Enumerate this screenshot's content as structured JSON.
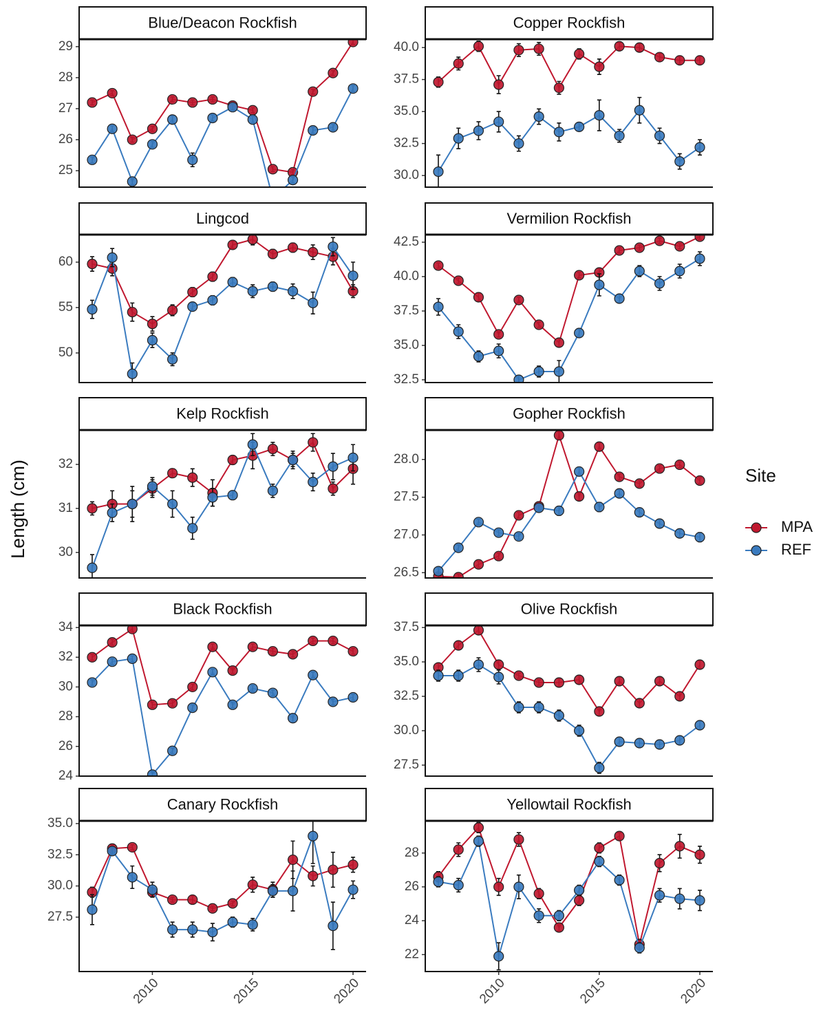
{
  "y_label": "Length (cm)",
  "legend_title": "Site",
  "chart_data": [
    {
      "type": "line",
      "title": "Blue/Deacon Rockfish",
      "x": [
        2007,
        2008,
        2009,
        2010,
        2011,
        2012,
        2013,
        2014,
        2015,
        2016,
        2017,
        2018,
        2019,
        2020
      ],
      "xlim": [
        2006.35,
        2020.65
      ],
      "ylim": [
        24.47,
        29.24
      ],
      "yticks": [
        25,
        26,
        27,
        28,
        29
      ],
      "series": [
        {
          "name": "MPA",
          "color": "#c0182f",
          "values": [
            27.2,
            27.5,
            26.0,
            26.35,
            27.3,
            27.2,
            27.3,
            27.1,
            26.95,
            25.05,
            24.95,
            27.55,
            28.15,
            29.15
          ],
          "errors": [
            0.08,
            0.08,
            0.08,
            0.08,
            0.08,
            0.08,
            0.08,
            0.08,
            0.08,
            0.08,
            0.08,
            0.08,
            0.08,
            0.08
          ]
        },
        {
          "name": "REF",
          "color": "#3a7bbf",
          "values": [
            25.35,
            26.35,
            24.65,
            25.85,
            26.65,
            25.35,
            26.7,
            27.05,
            26.65,
            24.1,
            24.7,
            26.3,
            26.4,
            27.65
          ],
          "errors": [
            0.1,
            0.1,
            0.1,
            0.1,
            0.12,
            0.22,
            0.1,
            0.1,
            0.1,
            0.1,
            0.1,
            0.1,
            0.1,
            0.1
          ]
        }
      ]
    },
    {
      "type": "line",
      "title": "Copper Rockfish",
      "x": [
        2007,
        2008,
        2009,
        2010,
        2011,
        2012,
        2013,
        2014,
        2015,
        2016,
        2017,
        2018,
        2019,
        2020
      ],
      "xlim": [
        2006.35,
        2020.65
      ],
      "ylim": [
        29.09,
        40.65
      ],
      "yticks": [
        {
          "value": 30,
          "label": "30.0"
        },
        32.5,
        {
          "value": 35,
          "label": "35.0"
        },
        37.5,
        {
          "value": 40,
          "label": "40.0"
        }
      ],
      "series": [
        {
          "name": "MPA",
          "color": "#c0182f",
          "values": [
            37.3,
            38.75,
            40.1,
            37.1,
            39.8,
            39.9,
            36.85,
            39.5,
            38.5,
            40.1,
            40.0,
            39.25,
            39.0,
            39.0
          ],
          "errors": [
            0.4,
            0.5,
            0.4,
            0.7,
            0.5,
            0.5,
            0.5,
            0.4,
            0.6,
            0.3,
            0.3,
            0.3,
            0.3,
            0.3
          ]
        },
        {
          "name": "REF",
          "color": "#3a7bbf",
          "values": [
            30.3,
            32.9,
            33.5,
            34.2,
            32.5,
            34.6,
            33.4,
            33.8,
            34.7,
            33.1,
            35.1,
            33.1,
            31.1,
            32.2
          ],
          "errors": [
            1.3,
            0.8,
            0.7,
            0.8,
            0.6,
            0.6,
            0.7,
            0.3,
            1.2,
            0.5,
            1.0,
            0.6,
            0.6,
            0.6
          ]
        }
      ]
    },
    {
      "type": "line",
      "title": "Lingcod",
      "x": [
        2007,
        2008,
        2009,
        2010,
        2011,
        2012,
        2013,
        2014,
        2015,
        2016,
        2017,
        2018,
        2019,
        2020
      ],
      "xlim": [
        2006.35,
        2020.65
      ],
      "ylim": [
        46.74,
        63.03
      ],
      "yticks": [
        50,
        55,
        60
      ],
      "series": [
        {
          "name": "MPA",
          "color": "#c0182f",
          "values": [
            59.8,
            59.3,
            54.5,
            53.2,
            54.7,
            56.7,
            58.4,
            61.9,
            62.5,
            60.9,
            61.6,
            61.1,
            60.6,
            56.8
          ],
          "errors": [
            0.8,
            0.8,
            1.0,
            0.8,
            0.6,
            0.5,
            0.5,
            0.4,
            0.6,
            0.5,
            0.5,
            0.8,
            0.9,
            0.7
          ]
        },
        {
          "name": "REF",
          "color": "#3a7bbf",
          "values": [
            54.8,
            60.5,
            47.7,
            51.4,
            49.3,
            55.1,
            55.8,
            57.8,
            56.8,
            57.3,
            56.8,
            55.5,
            61.7,
            58.5
          ],
          "errors": [
            1.0,
            1.0,
            1.2,
            0.8,
            0.7,
            0.4,
            0.5,
            0.5,
            0.7,
            0.5,
            0.8,
            1.2,
            1.0,
            1.5
          ]
        }
      ]
    },
    {
      "type": "line",
      "title": "Vermilion Rockfish",
      "x": [
        2007,
        2008,
        2009,
        2010,
        2011,
        2012,
        2013,
        2014,
        2015,
        2016,
        2017,
        2018,
        2019,
        2020
      ],
      "xlim": [
        2006.35,
        2020.65
      ],
      "ylim": [
        32.3,
        43.05
      ],
      "yticks": [
        32.5,
        {
          "value": 35,
          "label": "35.0"
        },
        37.5,
        {
          "value": 40,
          "label": "40.0"
        },
        42.5
      ],
      "series": [
        {
          "name": "MPA",
          "color": "#c0182f",
          "values": [
            40.8,
            39.7,
            38.5,
            35.8,
            38.3,
            36.5,
            35.2,
            40.1,
            40.3,
            41.9,
            42.1,
            42.6,
            42.2,
            42.9
          ],
          "errors": [
            0.2,
            0.2,
            0.3,
            0.2,
            0.2,
            0.2,
            0.3,
            0.2,
            0.3,
            0.2,
            0.2,
            0.2,
            0.2,
            0.2
          ]
        },
        {
          "name": "REF",
          "color": "#3a7bbf",
          "values": [
            37.8,
            36.0,
            34.2,
            34.6,
            32.5,
            33.1,
            33.1,
            35.9,
            39.4,
            38.4,
            40.4,
            39.5,
            40.4,
            41.3
          ],
          "errors": [
            0.6,
            0.5,
            0.4,
            0.5,
            0.3,
            0.4,
            0.8,
            0.3,
            0.8,
            0.3,
            0.4,
            0.5,
            0.5,
            0.5
          ]
        }
      ]
    },
    {
      "type": "line",
      "title": "Kelp Rockfish",
      "x": [
        2007,
        2008,
        2009,
        2010,
        2011,
        2012,
        2013,
        2014,
        2015,
        2016,
        2017,
        2018,
        2019,
        2020
      ],
      "xlim": [
        2006.35,
        2020.65
      ],
      "ylim": [
        29.42,
        32.78
      ],
      "yticks": [
        30,
        31,
        32
      ],
      "series": [
        {
          "name": "MPA",
          "color": "#c0182f",
          "values": [
            31.0,
            31.1,
            31.1,
            31.45,
            31.8,
            31.7,
            31.35,
            32.1,
            32.2,
            32.35,
            32.1,
            32.5,
            31.45,
            31.9
          ],
          "errors": [
            0.15,
            0.3,
            0.4,
            0.2,
            0.1,
            0.2,
            0.3,
            0.1,
            0.3,
            0.15,
            0.15,
            0.2,
            0.15,
            0.35
          ]
        },
        {
          "name": "REF",
          "color": "#3a7bbf",
          "values": [
            29.65,
            30.9,
            31.1,
            31.5,
            31.1,
            30.55,
            31.25,
            31.3,
            32.45,
            31.4,
            32.1,
            31.6,
            31.95,
            32.15
          ],
          "errors": [
            0.3,
            0.2,
            0.3,
            0.2,
            0.3,
            0.25,
            0.2,
            0.1,
            0.25,
            0.15,
            0.2,
            0.2,
            0.3,
            0.3
          ]
        }
      ]
    },
    {
      "type": "line",
      "title": "Gopher Rockfish",
      "x": [
        2007,
        2008,
        2009,
        2010,
        2011,
        2012,
        2013,
        2014,
        2015,
        2016,
        2017,
        2018,
        2019,
        2020
      ],
      "xlim": [
        2006.35,
        2020.65
      ],
      "ylim": [
        26.43,
        28.39
      ],
      "yticks": [
        26.5,
        {
          "value": 27,
          "label": "27.0"
        },
        27.5,
        {
          "value": 28,
          "label": "28.0"
        }
      ],
      "series": [
        {
          "name": "MPA",
          "color": "#c0182f",
          "values": [
            26.45,
            26.44,
            26.61,
            26.72,
            27.26,
            27.38,
            28.32,
            27.51,
            28.17,
            27.77,
            27.68,
            27.88,
            27.93,
            27.72
          ],
          "errors": [
            0.04,
            0.04,
            0.04,
            0.04,
            0.04,
            0.04,
            0.05,
            0.05,
            0.05,
            0.04,
            0.04,
            0.04,
            0.04,
            0.04
          ]
        },
        {
          "name": "REF",
          "color": "#3a7bbf",
          "values": [
            26.52,
            26.83,
            27.17,
            27.03,
            26.98,
            27.36,
            27.32,
            27.84,
            27.37,
            27.55,
            27.3,
            27.15,
            27.02,
            26.97
          ],
          "errors": [
            0.05,
            0.04,
            0.04,
            0.04,
            0.04,
            0.05,
            0.06,
            0.05,
            0.06,
            0.05,
            0.05,
            0.05,
            0.05,
            0.06
          ]
        }
      ]
    },
    {
      "type": "line",
      "title": "Black Rockfish",
      "x": [
        2007,
        2008,
        2009,
        2010,
        2011,
        2012,
        2013,
        2014,
        2015,
        2016,
        2017,
        2018,
        2019,
        2020
      ],
      "xlim": [
        2006.35,
        2020.65
      ],
      "ylim": [
        24,
        34.14
      ],
      "yticks": [
        24,
        26,
        28,
        30,
        32,
        34
      ],
      "series": [
        {
          "name": "MPA",
          "color": "#c0182f",
          "values": [
            32.0,
            33.0,
            33.9,
            28.8,
            28.9,
            30.0,
            32.7,
            31.1,
            32.7,
            32.4,
            32.2,
            33.1,
            33.1,
            32.4
          ],
          "errors": [
            0.2,
            0.2,
            0.2,
            0.2,
            0.2,
            0.2,
            0.2,
            0.2,
            0.2,
            0.2,
            0.2,
            0.2,
            0.2,
            0.2
          ]
        },
        {
          "name": "REF",
          "color": "#3a7bbf",
          "values": [
            30.3,
            31.7,
            31.9,
            24.1,
            25.7,
            28.6,
            31.0,
            28.8,
            29.9,
            29.6,
            27.9,
            30.8,
            29.0,
            29.3
          ],
          "errors": [
            0.2,
            0.2,
            0.2,
            0.2,
            0.2,
            0.2,
            0.2,
            0.2,
            0.2,
            0.2,
            0.3,
            0.2,
            0.2,
            0.2
          ]
        }
      ]
    },
    {
      "type": "line",
      "title": "Olive Rockfish",
      "x": [
        2007,
        2008,
        2009,
        2010,
        2011,
        2012,
        2013,
        2014,
        2015,
        2016,
        2017,
        2018,
        2019,
        2020
      ],
      "xlim": [
        2006.35,
        2020.65
      ],
      "ylim": [
        26.7,
        37.65
      ],
      "yticks": [
        27.5,
        {
          "value": 30,
          "label": "30.0"
        },
        32.5,
        {
          "value": 35,
          "label": "35.0"
        },
        37.5
      ],
      "series": [
        {
          "name": "MPA",
          "color": "#c0182f",
          "values": [
            34.6,
            36.2,
            37.3,
            34.8,
            34.0,
            33.5,
            33.5,
            33.7,
            31.4,
            33.6,
            32.0,
            33.6,
            32.5,
            34.8
          ],
          "errors": [
            0.3,
            0.3,
            0.3,
            0.3,
            0.2,
            0.2,
            0.3,
            0.3,
            0.3,
            0.3,
            0.3,
            0.3,
            0.3,
            0.3
          ]
        },
        {
          "name": "REF",
          "color": "#3a7bbf",
          "values": [
            34.0,
            34.0,
            34.8,
            33.9,
            31.7,
            31.7,
            31.1,
            30.0,
            27.3,
            29.2,
            29.1,
            29.0,
            29.3,
            30.4
          ],
          "errors": [
            0.4,
            0.4,
            0.5,
            0.5,
            0.4,
            0.4,
            0.4,
            0.4,
            0.4,
            0.3,
            0.3,
            0.3,
            0.3,
            0.3
          ]
        }
      ]
    },
    {
      "type": "line",
      "title": "Canary Rockfish",
      "x": [
        2007,
        2008,
        2009,
        2010,
        2011,
        2012,
        2013,
        2014,
        2015,
        2016,
        2017,
        2018,
        2019,
        2020
      ],
      "xlim": [
        2006.35,
        2020.65
      ],
      "ylim": [
        23.14,
        35.22
      ],
      "xticks": [
        2010,
        2015,
        2020
      ],
      "yticks": [
        27.5,
        {
          "value": 30,
          "label": "30.0"
        },
        32.5,
        {
          "value": 35,
          "label": "35.0"
        }
      ],
      "series": [
        {
          "name": "MPA",
          "color": "#c0182f",
          "values": [
            29.5,
            33.0,
            33.1,
            29.5,
            28.9,
            28.9,
            28.2,
            28.6,
            30.1,
            29.7,
            32.1,
            30.8,
            31.3,
            31.7
          ],
          "errors": [
            0.4,
            0.3,
            0.2,
            0.3,
            0.2,
            0.3,
            0.2,
            0.2,
            0.6,
            0.6,
            1.5,
            0.8,
            1.4,
            0.6
          ]
        },
        {
          "name": "REF",
          "color": "#3a7bbf",
          "values": [
            28.1,
            32.8,
            30.7,
            29.7,
            26.5,
            26.5,
            26.3,
            27.1,
            26.9,
            29.6,
            29.6,
            34.0,
            26.8,
            29.7
          ],
          "errors": [
            1.2,
            0.3,
            0.9,
            0.6,
            0.6,
            0.6,
            0.7,
            0.4,
            0.5,
            0.5,
            1.6,
            2.2,
            1.9,
            0.7
          ]
        }
      ]
    },
    {
      "type": "line",
      "title": "Yellowtail Rockfish",
      "x": [
        2007,
        2008,
        2009,
        2010,
        2011,
        2012,
        2013,
        2014,
        2015,
        2016,
        2017,
        2018,
        2019,
        2020
      ],
      "xlim": [
        2006.35,
        2020.65
      ],
      "ylim": [
        21.0,
        29.9
      ],
      "xticks": [
        2010,
        2015,
        2020
      ],
      "yticks": [
        22,
        24,
        26,
        28
      ],
      "series": [
        {
          "name": "MPA",
          "color": "#c0182f",
          "values": [
            26.6,
            28.2,
            29.5,
            26.0,
            28.8,
            25.6,
            23.6,
            25.2,
            28.3,
            29.0,
            22.6,
            27.4,
            28.4,
            27.9
          ],
          "errors": [
            0.3,
            0.4,
            0.3,
            0.5,
            0.4,
            0.3,
            0.2,
            0.3,
            0.3,
            0.2,
            0.3,
            0.5,
            0.7,
            0.5
          ]
        },
        {
          "name": "REF",
          "color": "#3a7bbf",
          "values": [
            26.3,
            26.1,
            28.7,
            21.9,
            26.0,
            24.3,
            24.3,
            25.8,
            27.5,
            26.4,
            22.4,
            25.5,
            25.3,
            25.2
          ],
          "errors": [
            0.3,
            0.4,
            0.3,
            0.8,
            0.7,
            0.4,
            0.3,
            0.3,
            0.3,
            0.3,
            0.3,
            0.4,
            0.6,
            0.6
          ]
        }
      ]
    }
  ]
}
